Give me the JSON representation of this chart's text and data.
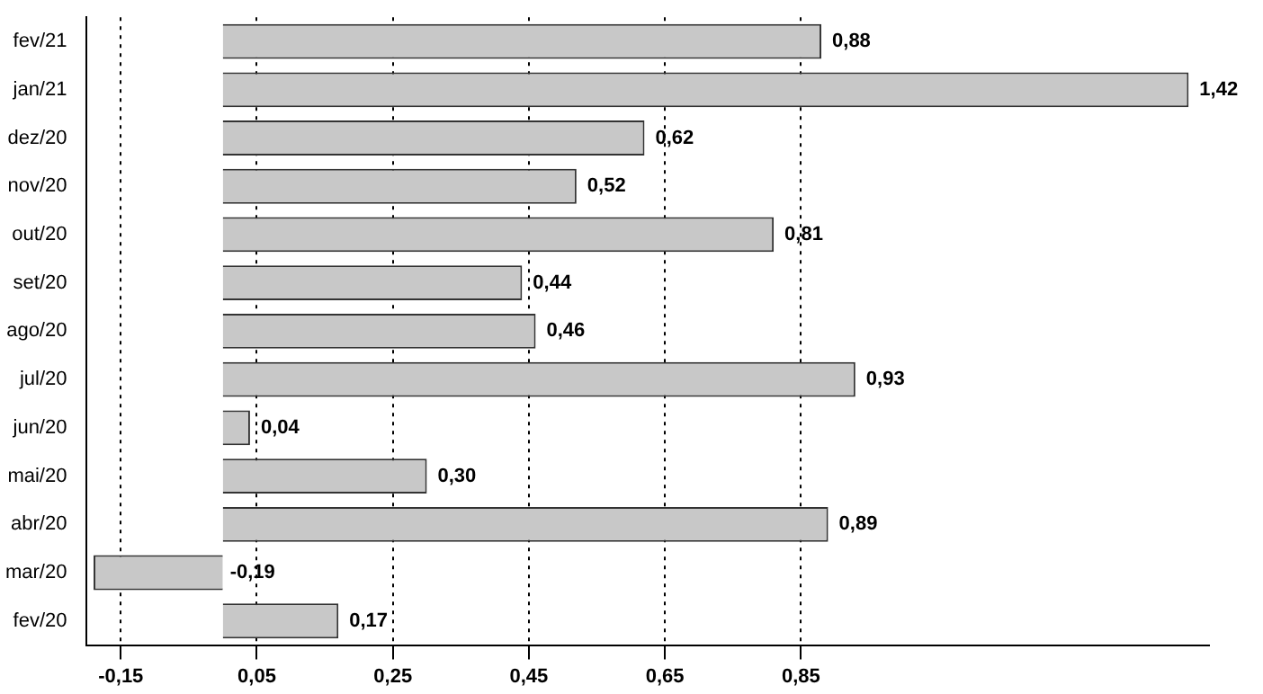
{
  "chart_data": {
    "type": "bar",
    "orientation": "horizontal",
    "categories": [
      "fev/21",
      "jan/21",
      "dez/20",
      "nov/20",
      "out/20",
      "set/20",
      "ago/20",
      "jul/20",
      "jun/20",
      "mai/20",
      "abr/20",
      "mar/20",
      "fev/20"
    ],
    "values": [
      0.88,
      1.42,
      0.62,
      0.52,
      0.81,
      0.44,
      0.46,
      0.93,
      0.04,
      0.3,
      0.89,
      -0.19,
      0.17
    ],
    "value_labels": [
      "0,88",
      "1,42",
      "0,62",
      "0,52",
      "0,81",
      "0,44",
      "0,46",
      "0,93",
      "0,04",
      "0,30",
      "0,89",
      "-0,19",
      "0,17"
    ],
    "color": "#c8c8c8",
    "xlim": [
      -0.2,
      1.45
    ],
    "xticks": [
      {
        "value": -0.15,
        "label": "-0,15"
      },
      {
        "value": 0.05,
        "label": "0,05"
      },
      {
        "value": 0.25,
        "label": "0,25"
      },
      {
        "value": 0.45,
        "label": "0,45"
      },
      {
        "value": 0.65,
        "label": "0,65"
      },
      {
        "value": 0.85,
        "label": "0,85"
      }
    ],
    "grid": "x"
  }
}
